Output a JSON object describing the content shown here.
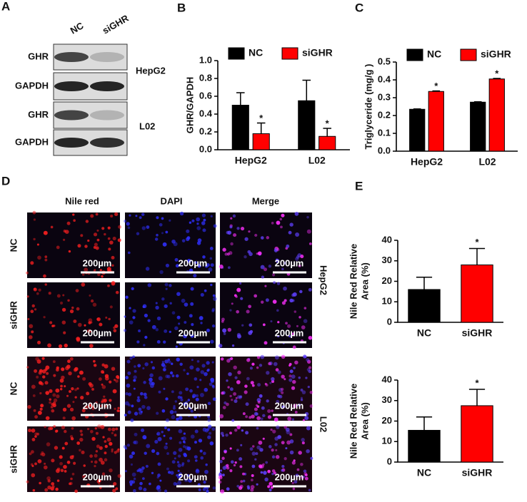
{
  "panel_labels": [
    "A",
    "B",
    "C",
    "D",
    "E"
  ],
  "blot": {
    "columns": [
      "NC",
      "siGHR"
    ],
    "rows": [
      "GHR",
      "GAPDH",
      "GHR",
      "GAPDH"
    ],
    "cell_lines": [
      "HepG2",
      "L02"
    ]
  },
  "imaging": {
    "columns": [
      "Nile red",
      "DAPI",
      "Merge"
    ],
    "rows": [
      "NC",
      "siGHR",
      "NC",
      "siGHR"
    ],
    "cell_lines": [
      "HepG2",
      "L02"
    ],
    "scale_bar": "200µm"
  },
  "chart_data": [
    {
      "type": "bar",
      "categories": [
        "HepG2",
        "L02"
      ],
      "series": [
        {
          "name": "NC",
          "color": "#000000",
          "values": [
            0.5,
            0.55
          ],
          "errors": [
            0.14,
            0.23
          ]
        },
        {
          "name": "siGHR",
          "color": "#ff0000",
          "values": [
            0.18,
            0.15
          ],
          "errors": [
            0.12,
            0.09
          ]
        }
      ],
      "annotations": [
        "*",
        "*"
      ],
      "ylabel": "GHR/GAPDH",
      "ylim": [
        0,
        1
      ],
      "yticks": [
        {
          "value": 0,
          "label": "0.0"
        },
        0.2,
        0.4,
        0.6,
        0.8,
        {
          "value": 1,
          "label": "1.0"
        }
      ]
    },
    {
      "type": "bar",
      "categories": [
        "HepG2",
        "L02"
      ],
      "series": [
        {
          "name": "NC",
          "color": "#000000",
          "values": [
            0.235,
            0.275
          ],
          "errors": [
            0.002,
            0.002
          ]
        },
        {
          "name": "siGHR",
          "color": "#ff0000",
          "values": [
            0.335,
            0.405
          ],
          "errors": [
            0.003,
            0.003
          ]
        }
      ],
      "annotations": [
        "*",
        "*"
      ],
      "ylabel": "Triglyceride (mg/g )",
      "ylim": [
        0,
        0.5
      ],
      "yticks": [
        {
          "value": 0,
          "label": "0.0"
        },
        0.1,
        0.2,
        0.3,
        0.4,
        0.5
      ]
    },
    {
      "type": "bar",
      "categories": [
        "NC",
        "siGHR"
      ],
      "values": [
        16,
        28
      ],
      "errors": [
        6,
        8
      ],
      "colors": [
        "#000000",
        "#ff0000"
      ],
      "annotation": "*",
      "ylabel": [
        "Nile Red Relative",
        "Area (%)"
      ],
      "ylim": [
        0,
        40
      ],
      "yticks": [
        0,
        10,
        20,
        30,
        40
      ]
    },
    {
      "type": "bar",
      "categories": [
        "NC",
        "siGHR"
      ],
      "values": [
        15.5,
        27.5
      ],
      "errors": [
        6.5,
        8
      ],
      "colors": [
        "#000000",
        "#ff0000"
      ],
      "annotation": "*",
      "ylabel": [
        "Nile Red Relative",
        "Area (%)"
      ],
      "ylim": [
        0,
        40
      ],
      "yticks": [
        0,
        10,
        20,
        30,
        40
      ]
    }
  ]
}
